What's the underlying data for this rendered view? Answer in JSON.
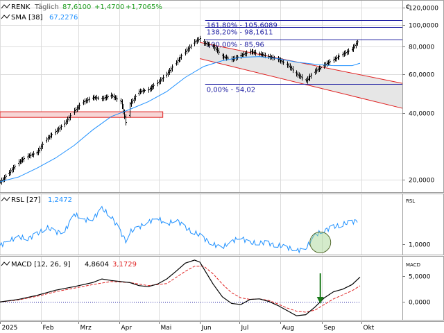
{
  "symbol": "RENK",
  "interval": "Täglich",
  "last": "87,6100",
  "change": "+1,4700",
  "change_pct": "+1,7065%",
  "currency": "€",
  "colors": {
    "up": "#22a022",
    "price_bar": "#000000",
    "sma": "#1e90ff",
    "rsl": "#1e90ff",
    "macd": "#000000",
    "signal": "#e02020",
    "fib": "#1a1aa0",
    "channel": "#e02020",
    "arrow": "#1a7a1a",
    "grid": "#dcdcdc"
  },
  "chart_data": [
    {
      "type": "line",
      "title": "RENK Täglich",
      "y_scale": "log",
      "ylim": [
        17.5,
        130
      ],
      "y_ticks": [
        20,
        40,
        60,
        80,
        100,
        120
      ],
      "y_tick_labels": [
        "20,0000",
        "40,0000",
        "60,0000",
        "80,0000",
        "100,0000",
        "120,0000"
      ],
      "x_labels": [
        "2025",
        "Feb",
        "Mrz",
        "Apr",
        "Mai",
        "Jun",
        "Jul",
        "Aug",
        "Sep",
        "Okt"
      ],
      "x_label_days": [
        0,
        31,
        59,
        90,
        120,
        151,
        181,
        212,
        243,
        273
      ],
      "xlim_days": [
        0,
        304
      ],
      "series": [
        {
          "name": "RENK",
          "x": [
            0,
            7,
            14,
            21,
            28,
            35,
            42,
            49,
            56,
            63,
            70,
            77,
            84,
            91,
            96,
            98,
            105,
            112,
            119,
            126,
            133,
            140,
            147,
            151,
            154,
            161,
            168,
            175,
            182,
            189,
            196,
            203,
            210,
            217,
            224,
            231,
            238,
            245,
            252,
            259,
            266,
            270,
            272
          ],
          "y": [
            19.5,
            21.5,
            24,
            25.5,
            26.5,
            30.5,
            33,
            36,
            41,
            45,
            47,
            46.5,
            48,
            45,
            34,
            44,
            50,
            51,
            55,
            60,
            68,
            76,
            84,
            87,
            83,
            80,
            72,
            70,
            73,
            76,
            74,
            72,
            70,
            66,
            60,
            56,
            62,
            66,
            70,
            74,
            78,
            84,
            87.61
          ]
        },
        {
          "name": "SMA",
          "label": "SMA [38]",
          "last_value": "67,2276",
          "x": [
            0,
            14,
            28,
            42,
            56,
            70,
            84,
            98,
            112,
            126,
            140,
            154,
            168,
            182,
            196,
            210,
            224,
            238,
            252,
            266,
            272
          ],
          "y": [
            19.5,
            20.5,
            22.5,
            25,
            28.5,
            33.5,
            38.5,
            41.5,
            45,
            50,
            58,
            65,
            69,
            71.5,
            72,
            70.5,
            68,
            66.5,
            65.5,
            65.5,
            67.2276
          ]
        }
      ],
      "fibonacci": [
        {
          "label": "161,80% - 105,6089",
          "value": 105.6089
        },
        {
          "label": "138,20% - 98,1611",
          "value": 98.1611
        },
        {
          "label": "100,00% - 85,96",
          "value": 85.96
        },
        {
          "label": "0,00% - 54,02",
          "value": 54.02
        }
      ],
      "support_zone": [
        38.2,
        40.5
      ],
      "channel": {
        "start_day": 151,
        "end_day": 304,
        "upper": [
          83.5,
          54.5
        ],
        "lower": [
          70.5,
          42
        ]
      }
    },
    {
      "type": "line",
      "title": "RSL [27]",
      "label": "RSL [27]",
      "last_value": "1,2472",
      "ylim": [
        0.9,
        1.5
      ],
      "y_ticks": [
        1.0
      ],
      "y_tick_labels": [
        "1,0000"
      ],
      "axis_tag": "RSL",
      "reference_line": 1.0,
      "series": [
        {
          "name": "RSL",
          "x": [
            0,
            7,
            14,
            21,
            28,
            35,
            42,
            49,
            56,
            63,
            70,
            77,
            84,
            91,
            96,
            98,
            105,
            112,
            119,
            126,
            133,
            140,
            147,
            154,
            161,
            168,
            175,
            182,
            189,
            196,
            203,
            210,
            217,
            224,
            231,
            238,
            245,
            252,
            259,
            266,
            272
          ],
          "y": [
            0.99,
            1.04,
            1.07,
            1.06,
            1.1,
            1.17,
            1.12,
            1.13,
            1.3,
            1.24,
            1.25,
            1.35,
            1.28,
            1.12,
            1.02,
            1.12,
            1.17,
            1.22,
            1.26,
            1.19,
            1.25,
            1.16,
            1.12,
            1.06,
            1.0,
            0.97,
            1.03,
            1.07,
            1.01,
            1.02,
            1.01,
            0.99,
            0.97,
            0.94,
            0.96,
            1.09,
            1.14,
            1.17,
            1.2,
            1.22,
            1.2472
          ]
        }
      ],
      "highlight_circle_day": 242
    },
    {
      "type": "line",
      "title": "MACD [12, 26, 9]",
      "label": "MACD [12, 26, 9]",
      "macd_value": "4,8604",
      "signal_value": "3,1729",
      "ylim": [
        -3.5,
        9
      ],
      "y_ticks": [
        0,
        5
      ],
      "y_tick_labels": [
        "0,0000",
        "5,0000"
      ],
      "axis_tag": "MACD",
      "series": [
        {
          "name": "MACD",
          "x": [
            0,
            14,
            28,
            42,
            56,
            70,
            77,
            84,
            91,
            98,
            105,
            112,
            119,
            126,
            133,
            140,
            147,
            151,
            154,
            161,
            168,
            175,
            182,
            189,
            196,
            203,
            210,
            217,
            224,
            231,
            238,
            245,
            252,
            259,
            266,
            272
          ],
          "y": [
            0.0,
            0.5,
            1.3,
            2.3,
            3.0,
            3.8,
            4.5,
            4.2,
            4.0,
            3.8,
            3.2,
            3.0,
            3.5,
            4.5,
            6.0,
            7.6,
            8.2,
            7.8,
            6.5,
            3.5,
            1.0,
            -0.3,
            -0.5,
            0.5,
            0.6,
            0.1,
            -0.7,
            -1.7,
            -2.7,
            -2.5,
            -1.0,
            0.8,
            2.0,
            2.5,
            3.4,
            4.8604
          ]
        },
        {
          "name": "Signal",
          "x": [
            0,
            14,
            28,
            42,
            56,
            70,
            84,
            98,
            112,
            126,
            140,
            147,
            154,
            161,
            168,
            175,
            182,
            189,
            196,
            203,
            210,
            217,
            224,
            231,
            238,
            245,
            252,
            259,
            266,
            272
          ],
          "y": [
            0.0,
            0.4,
            1.1,
            2.0,
            2.7,
            3.4,
            4.0,
            3.8,
            3.2,
            3.6,
            6.0,
            7.0,
            7.0,
            5.5,
            3.5,
            1.8,
            0.8,
            0.5,
            0.6,
            0.3,
            -0.4,
            -1.2,
            -1.8,
            -2.0,
            -1.6,
            -0.5,
            0.6,
            1.4,
            2.2,
            3.1729
          ]
        }
      ],
      "signal_arrow_day": 242
    }
  ]
}
